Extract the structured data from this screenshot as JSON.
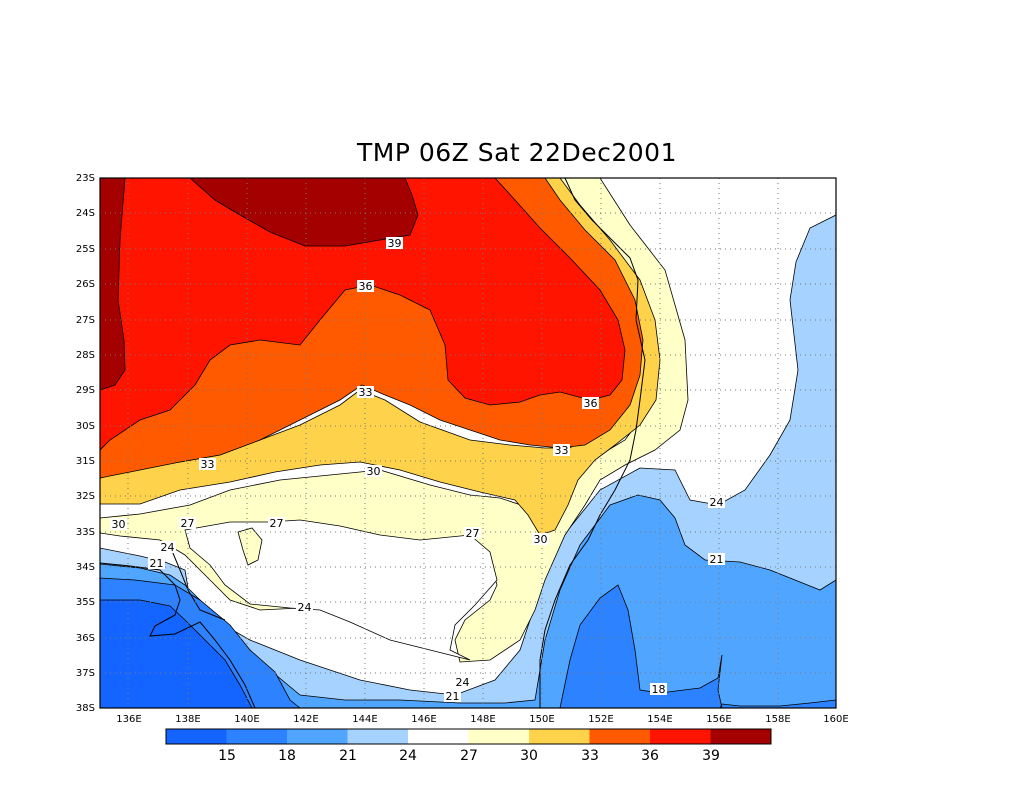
{
  "title": "TMP 06Z Sat 22Dec2001",
  "map": {
    "lon_labels": [
      "136E",
      "138E",
      "140E",
      "142E",
      "144E",
      "146E",
      "148E",
      "150E",
      "152E",
      "154E",
      "156E",
      "158E",
      "160E"
    ],
    "lat_labels": [
      "23S",
      "24S",
      "25S",
      "26S",
      "27S",
      "28S",
      "29S",
      "30S",
      "31S",
      "32S",
      "33S",
      "34S",
      "35S",
      "36S",
      "37S",
      "38S"
    ],
    "contour_labels": [
      "39",
      "36",
      "36",
      "33",
      "33",
      "33",
      "30",
      "30",
      "30",
      "27",
      "27",
      "27",
      "24",
      "24",
      "24",
      "24",
      "21",
      "21",
      "21",
      "18"
    ]
  },
  "colorbar": {
    "colors": [
      "#1464ff",
      "#2d82ff",
      "#50a5ff",
      "#a5d2ff",
      "#ffffff",
      "#ffffc8",
      "#ffd24b",
      "#ff5a00",
      "#ff1400",
      "#a50000"
    ],
    "labels": [
      "15",
      "18",
      "21",
      "24",
      "27",
      "30",
      "33",
      "36",
      "39"
    ]
  }
}
